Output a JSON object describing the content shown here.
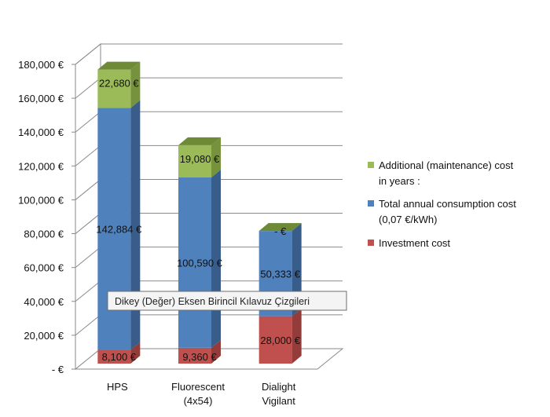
{
  "chart_data": {
    "type": "bar",
    "stacked": true,
    "three_d": true,
    "categories": [
      [
        "HPS"
      ],
      [
        "Fluorescent",
        "(4x54)"
      ],
      [
        "Dialight",
        "Vigilant"
      ]
    ],
    "series": [
      {
        "name": "Investment cost",
        "values": [
          8100,
          9360,
          28000
        ],
        "labels": [
          "8,100 €",
          "9,360 €",
          "28,000 €"
        ]
      },
      {
        "name": [
          "Total annual consumption cost",
          "(0,07 €/kWh)"
        ],
        "values": [
          142884,
          100590,
          50333
        ],
        "labels": [
          "142,884 €",
          "100,590 €",
          "50,333 €"
        ]
      },
      {
        "name": [
          "Additional (maintenance) cost",
          "in years :"
        ],
        "values": [
          22680,
          19080,
          0
        ],
        "labels": [
          "22,680 €",
          "19,080 €",
          "- €"
        ]
      }
    ],
    "ylim": [
      0,
      180000
    ],
    "ytick_labels": [
      "- €",
      "20,000 €",
      "40,000 €",
      "60,000 €",
      "80,000 €",
      "100,000 €",
      "120,000 €",
      "140,000 €",
      "160,000 €",
      "180,000 €"
    ],
    "grid": true,
    "legend_position": "right",
    "colors": {
      "Investment cost": {
        "front": "#c0504d",
        "side": "#943c39",
        "top": "#d37977"
      },
      "Total annual consumption cost": {
        "front": "#4f81bd",
        "side": "#385d8a",
        "top": "#7aa0d0"
      },
      "Additional (maintenance) cost": {
        "front": "#9bbb59",
        "side": "#76923c",
        "top": "#6e8a35"
      }
    }
  },
  "tooltip": {
    "text": "Dikey (Değer) Eksen Birincil Kılavuz Çizgileri"
  }
}
